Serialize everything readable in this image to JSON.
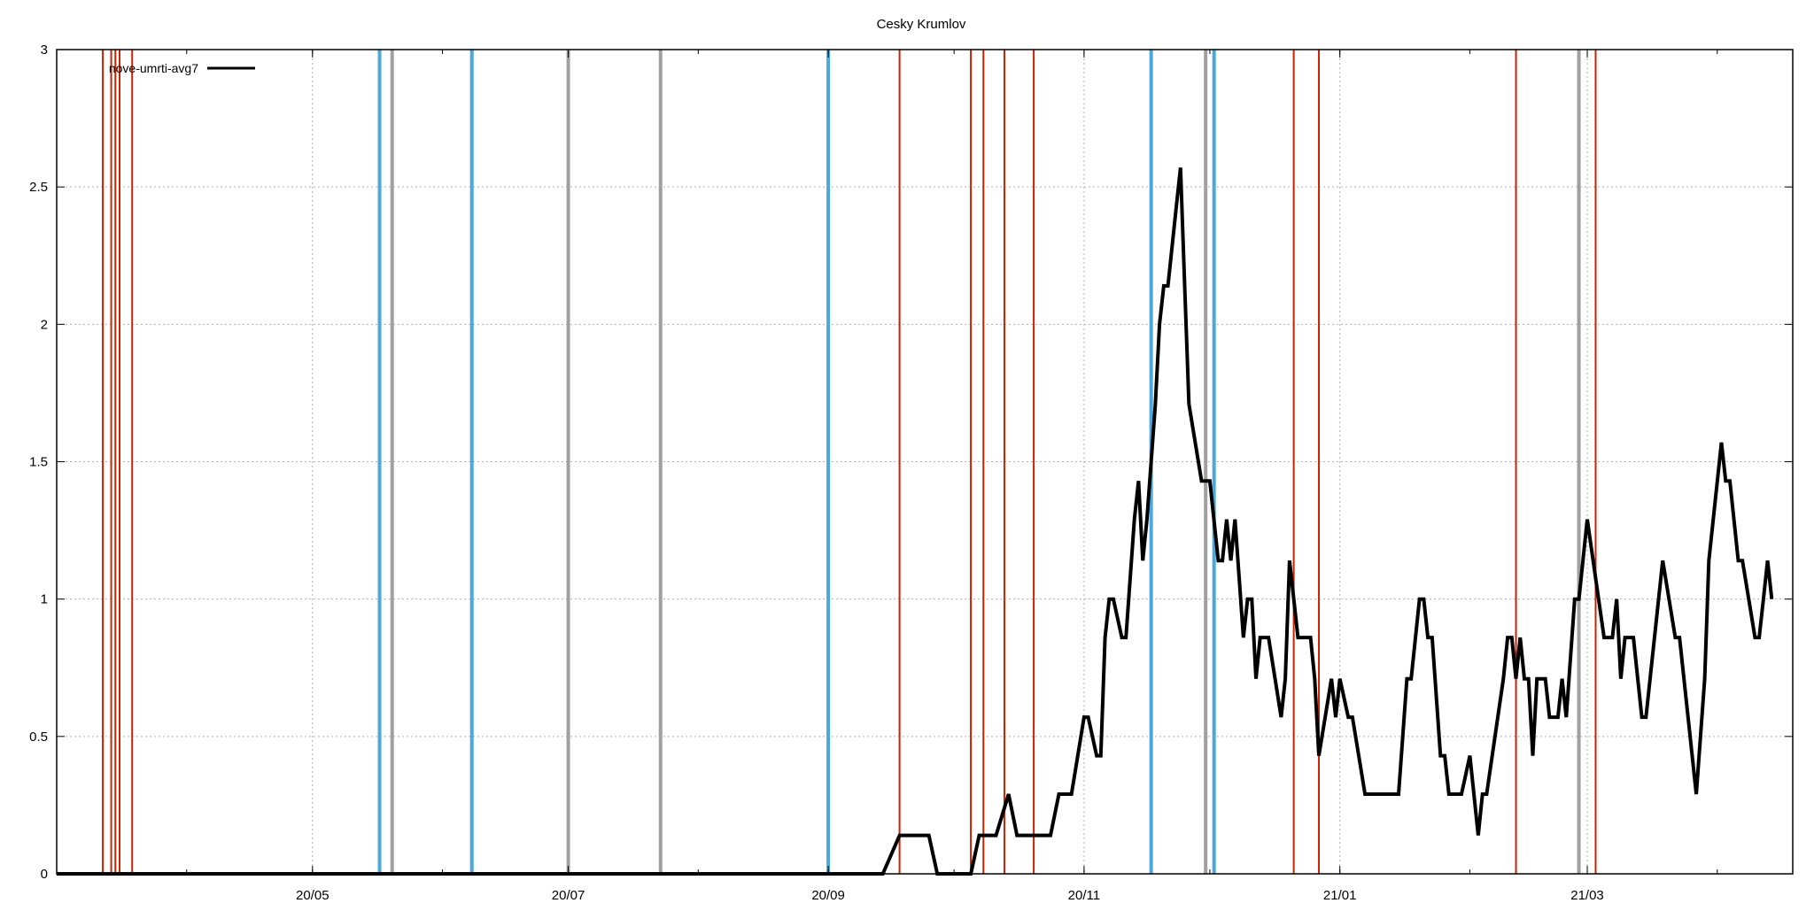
{
  "chart_data": {
    "type": "line",
    "title": "Cesky Krumlov",
    "xlabel": "",
    "ylabel": "",
    "legend_position": "top-left",
    "grid": true,
    "x_ticks": [
      "20/05",
      "20/07",
      "20/09",
      "20/11",
      "21/01",
      "21/03"
    ],
    "y_ticks": [
      "0",
      "0.5",
      "1",
      "1.5",
      "2",
      "2.5",
      "3"
    ],
    "ylim": [
      0,
      3
    ],
    "xlim": [
      "2020-03-01",
      "2021-04-19"
    ],
    "series": [
      {
        "name": "nove-umrti-avg7",
        "color": "#000000",
        "points": [
          [
            "2020-03-01",
            0
          ],
          [
            "2020-09-14",
            0
          ],
          [
            "2020-09-18",
            0.14
          ],
          [
            "2020-09-25",
            0.14
          ],
          [
            "2020-09-27",
            0
          ],
          [
            "2020-10-05",
            0
          ],
          [
            "2020-10-07",
            0.14
          ],
          [
            "2020-10-11",
            0.14
          ],
          [
            "2020-10-14",
            0.29
          ],
          [
            "2020-10-16",
            0.14
          ],
          [
            "2020-10-24",
            0.14
          ],
          [
            "2020-10-26",
            0.29
          ],
          [
            "2020-10-29",
            0.29
          ],
          [
            "2020-11-01",
            0.57
          ],
          [
            "2020-11-02",
            0.57
          ],
          [
            "2020-11-04",
            0.43
          ],
          [
            "2020-11-05",
            0.43
          ],
          [
            "2020-11-06",
            0.86
          ],
          [
            "2020-11-07",
            1.0
          ],
          [
            "2020-11-08",
            1.0
          ],
          [
            "2020-11-10",
            0.86
          ],
          [
            "2020-11-11",
            0.86
          ],
          [
            "2020-11-13",
            1.29
          ],
          [
            "2020-11-14",
            1.43
          ],
          [
            "2020-11-15",
            1.14
          ],
          [
            "2020-11-16",
            1.29
          ],
          [
            "2020-11-18",
            1.71
          ],
          [
            "2020-11-19",
            2.0
          ],
          [
            "2020-11-20",
            2.14
          ],
          [
            "2020-11-21",
            2.14
          ],
          [
            "2020-11-23",
            2.43
          ],
          [
            "2020-11-24",
            2.57
          ],
          [
            "2020-11-25",
            2.14
          ],
          [
            "2020-11-26",
            1.71
          ],
          [
            "2020-11-29",
            1.43
          ],
          [
            "2020-12-01",
            1.43
          ],
          [
            "2020-12-03",
            1.14
          ],
          [
            "2020-12-04",
            1.14
          ],
          [
            "2020-12-05",
            1.29
          ],
          [
            "2020-12-06",
            1.14
          ],
          [
            "2020-12-07",
            1.29
          ],
          [
            "2020-12-09",
            0.86
          ],
          [
            "2020-12-10",
            1.0
          ],
          [
            "2020-12-11",
            1.0
          ],
          [
            "2020-12-12",
            0.71
          ],
          [
            "2020-12-13",
            0.86
          ],
          [
            "2020-12-15",
            0.86
          ],
          [
            "2020-12-18",
            0.57
          ],
          [
            "2020-12-19",
            0.71
          ],
          [
            "2020-12-20",
            1.14
          ],
          [
            "2020-12-22",
            0.86
          ],
          [
            "2020-12-25",
            0.86
          ],
          [
            "2020-12-26",
            0.71
          ],
          [
            "2020-12-27",
            0.43
          ],
          [
            "2020-12-30",
            0.71
          ],
          [
            "2020-12-31",
            0.57
          ],
          [
            "2021-01-01",
            0.71
          ],
          [
            "2021-01-03",
            0.57
          ],
          [
            "2021-01-04",
            0.57
          ],
          [
            "2021-01-07",
            0.29
          ],
          [
            "2021-01-15",
            0.29
          ],
          [
            "2021-01-17",
            0.71
          ],
          [
            "2021-01-18",
            0.71
          ],
          [
            "2021-01-20",
            1.0
          ],
          [
            "2021-01-21",
            1.0
          ],
          [
            "2021-01-22",
            0.86
          ],
          [
            "2021-01-23",
            0.86
          ],
          [
            "2021-01-25",
            0.43
          ],
          [
            "2021-01-26",
            0.43
          ],
          [
            "2021-01-27",
            0.29
          ],
          [
            "2021-01-30",
            0.29
          ],
          [
            "2021-02-01",
            0.43
          ],
          [
            "2021-02-03",
            0.14
          ],
          [
            "2021-02-04",
            0.29
          ],
          [
            "2021-02-05",
            0.29
          ],
          [
            "2021-02-09",
            0.71
          ],
          [
            "2021-02-10",
            0.86
          ],
          [
            "2021-02-11",
            0.86
          ],
          [
            "2021-02-12",
            0.71
          ],
          [
            "2021-02-13",
            0.86
          ],
          [
            "2021-02-14",
            0.71
          ],
          [
            "2021-02-15",
            0.71
          ],
          [
            "2021-02-16",
            0.43
          ],
          [
            "2021-02-17",
            0.71
          ],
          [
            "2021-02-19",
            0.71
          ],
          [
            "2021-02-20",
            0.57
          ],
          [
            "2021-02-22",
            0.57
          ],
          [
            "2021-02-23",
            0.71
          ],
          [
            "2021-02-24",
            0.57
          ],
          [
            "2021-02-26",
            1.0
          ],
          [
            "2021-02-27",
            1.0
          ],
          [
            "2021-03-01",
            1.29
          ],
          [
            "2021-03-05",
            0.86
          ],
          [
            "2021-03-07",
            0.86
          ],
          [
            "2021-03-08",
            1.0
          ],
          [
            "2021-03-09",
            0.71
          ],
          [
            "2021-03-10",
            0.86
          ],
          [
            "2021-03-12",
            0.86
          ],
          [
            "2021-03-14",
            0.57
          ],
          [
            "2021-03-15",
            0.57
          ],
          [
            "2021-03-19",
            1.14
          ],
          [
            "2021-03-22",
            0.86
          ],
          [
            "2021-03-23",
            0.86
          ],
          [
            "2021-03-27",
            0.29
          ],
          [
            "2021-03-29",
            0.71
          ],
          [
            "2021-03-30",
            1.14
          ],
          [
            "2021-04-02",
            1.57
          ],
          [
            "2021-04-03",
            1.43
          ],
          [
            "2021-04-04",
            1.43
          ],
          [
            "2021-04-06",
            1.14
          ],
          [
            "2021-04-07",
            1.14
          ],
          [
            "2021-04-10",
            0.86
          ],
          [
            "2021-04-11",
            0.86
          ],
          [
            "2021-04-12",
            1.0
          ],
          [
            "2021-04-13",
            1.14
          ],
          [
            "2021-04-14",
            1.0
          ]
        ]
      }
    ],
    "vertical_markers": [
      {
        "date": "2020-03-12",
        "color": "#cc2200"
      },
      {
        "date": "2020-03-14",
        "color": "#cc2200"
      },
      {
        "date": "2020-03-15",
        "color": "#cc2200"
      },
      {
        "date": "2020-03-16",
        "color": "#cc2200"
      },
      {
        "date": "2020-03-19",
        "color": "#cc2200"
      },
      {
        "date": "2020-05-17",
        "color": "#4aa8dd"
      },
      {
        "date": "2020-05-20",
        "color": "#a0a0a0"
      },
      {
        "date": "2020-06-08",
        "color": "#4aa8dd"
      },
      {
        "date": "2020-07-01",
        "color": "#a0a0a0"
      },
      {
        "date": "2020-07-23",
        "color": "#a0a0a0"
      },
      {
        "date": "2020-09-01",
        "color": "#4aa8dd"
      },
      {
        "date": "2020-09-18",
        "color": "#cc2200"
      },
      {
        "date": "2020-10-05",
        "color": "#cc2200"
      },
      {
        "date": "2020-10-08",
        "color": "#cc2200"
      },
      {
        "date": "2020-10-13",
        "color": "#cc2200"
      },
      {
        "date": "2020-10-20",
        "color": "#cc2200"
      },
      {
        "date": "2020-11-17",
        "color": "#4aa8dd"
      },
      {
        "date": "2020-11-30",
        "color": "#a0a0a0"
      },
      {
        "date": "2020-12-02",
        "color": "#4aa8dd"
      },
      {
        "date": "2020-12-21",
        "color": "#cc2200"
      },
      {
        "date": "2020-12-27",
        "color": "#cc2200"
      },
      {
        "date": "2021-02-12",
        "color": "#cc2200"
      },
      {
        "date": "2021-02-27",
        "color": "#a0a0a0"
      },
      {
        "date": "2021-03-03",
        "color": "#cc2200"
      }
    ]
  }
}
